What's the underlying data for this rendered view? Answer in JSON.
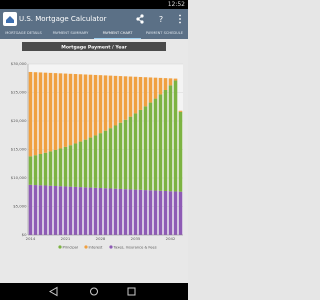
{
  "status": {
    "time": "12:52"
  },
  "app": {
    "title": "U.S. Mortgage Calculator"
  },
  "tabs": [
    "MORTGAGE DETAILS",
    "PAYMENT SUMMARY",
    "PAYMENT CHART",
    "PAYMENT SCHEDULE"
  ],
  "chart_data": {
    "type": "bar",
    "stacked": true,
    "title": "Mortgage Payment / Year",
    "categories": [
      "2014",
      null,
      null,
      null,
      null,
      null,
      null,
      "2021",
      null,
      null,
      null,
      null,
      null,
      null,
      "2028",
      null,
      null,
      null,
      null,
      null,
      null,
      "2035",
      null,
      null,
      null,
      null,
      null,
      null,
      "2042",
      null,
      null
    ],
    "series": [
      {
        "name": "Taxes, Insurance & Fees",
        "color": "#8e5bb5",
        "values": [
          8800,
          8760,
          8720,
          8680,
          8640,
          8600,
          8560,
          8520,
          8480,
          8440,
          8400,
          8360,
          8320,
          8280,
          8240,
          8200,
          8160,
          8120,
          8080,
          8040,
          8000,
          7960,
          7920,
          7880,
          7840,
          7800,
          7760,
          7720,
          7680,
          7640,
          7600
        ]
      },
      {
        "name": "Principal",
        "color": "#7cb342",
        "values": [
          5000,
          5240,
          5490,
          5750,
          6030,
          6320,
          6620,
          6940,
          7270,
          7620,
          7990,
          8370,
          8770,
          9190,
          9630,
          10100,
          10580,
          11090,
          11620,
          12180,
          12760,
          13370,
          14020,
          14690,
          15390,
          16130,
          16910,
          17720,
          18570,
          19460,
          14000
        ]
      },
      {
        "name": "Interest",
        "color": "#f0a040",
        "values": [
          14800,
          14560,
          14310,
          14050,
          13770,
          13480,
          13180,
          12860,
          12530,
          12180,
          11810,
          11430,
          11030,
          10610,
          10170,
          9700,
          9220,
          8710,
          8180,
          7620,
          7040,
          6430,
          5780,
          5110,
          4410,
          3670,
          2890,
          2080,
          1230,
          340,
          200
        ]
      }
    ],
    "ylim": [
      0,
      30000
    ],
    "yticks": [
      {
        "value": 0,
        "label": "$0"
      },
      {
        "value": 5000,
        "label": "$5,000"
      },
      {
        "value": 10000,
        "label": "$10,000"
      },
      {
        "value": 15000,
        "label": "$15,000"
      },
      {
        "value": 20000,
        "label": "$20,000"
      },
      {
        "value": 25000,
        "label": "$25,000"
      },
      {
        "value": 30000,
        "label": "$30,000"
      }
    ],
    "grid": true
  }
}
